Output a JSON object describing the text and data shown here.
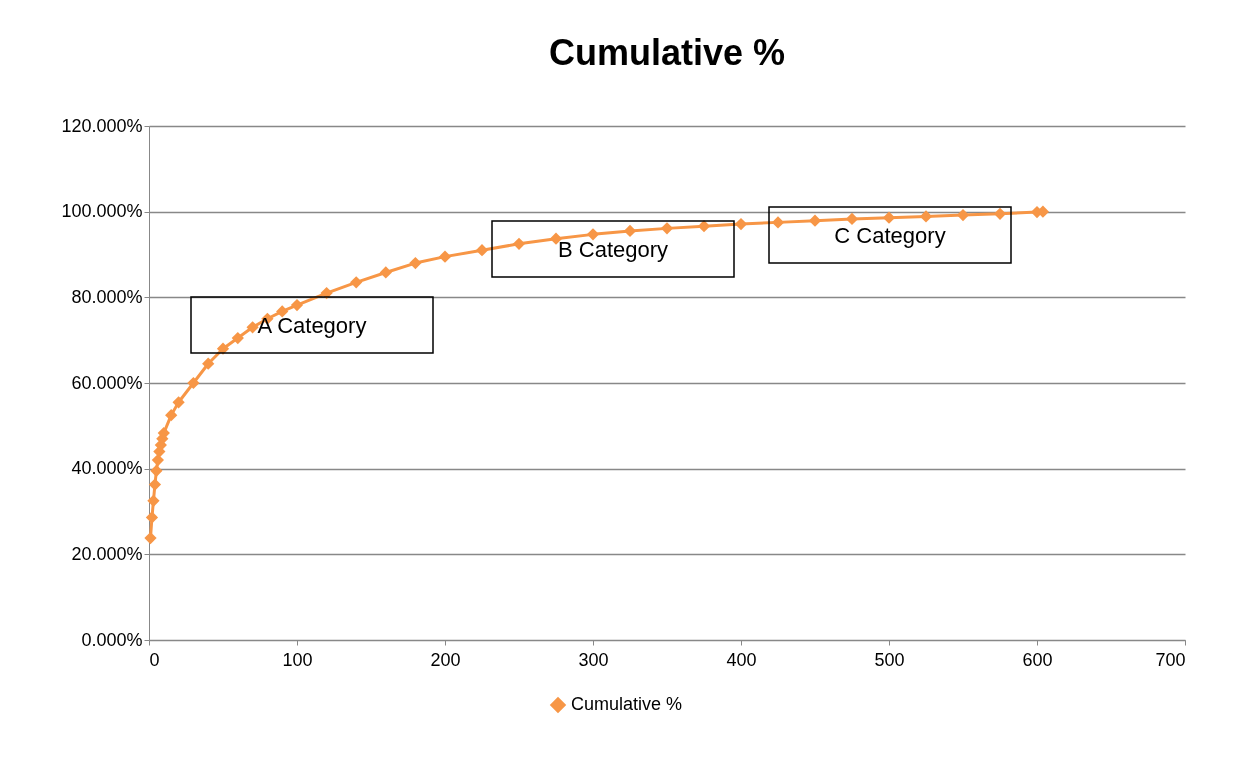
{
  "chart_data": {
    "type": "line",
    "title": "Cumulative %",
    "x": [
      1,
      2,
      3,
      4,
      5,
      6,
      7,
      8,
      9,
      10,
      15,
      20,
      30,
      40,
      50,
      60,
      70,
      80,
      90,
      100,
      120,
      140,
      160,
      180,
      200,
      225,
      250,
      275,
      300,
      325,
      350,
      375,
      400,
      425,
      450,
      475,
      500,
      525,
      550,
      575,
      600,
      604
    ],
    "series": [
      {
        "name": "Cumulative %",
        "color": "#f79646",
        "values": [
          23.8,
          28.6,
          32.5,
          36.3,
          39.5,
          42,
          44,
          45.5,
          47,
          48.3,
          52.5,
          55.5,
          60,
          64.5,
          68,
          70.5,
          73,
          75,
          76.7,
          78.2,
          81,
          83.5,
          85.8,
          88,
          89.5,
          91,
          92.5,
          93.7,
          94.7,
          95.5,
          96.1,
          96.6,
          97.1,
          97.5,
          97.9,
          98.3,
          98.6,
          98.9,
          99.2,
          99.5,
          99.9,
          100
        ]
      }
    ],
    "xlim": [
      0,
      700
    ],
    "xticks": [
      0,
      100,
      200,
      300,
      400,
      500,
      600,
      700
    ],
    "ylim": [
      0,
      120
    ],
    "yticks": [
      {
        "value": 0,
        "label": "0.000%"
      },
      {
        "value": 20,
        "label": "20.000%"
      },
      {
        "value": 40,
        "label": "40.000%"
      },
      {
        "value": 60,
        "label": "60.000%"
      },
      {
        "value": 80,
        "label": "80.000%"
      },
      {
        "value": 100,
        "label": "100.000%"
      },
      {
        "value": 120,
        "label": "120.000%"
      }
    ],
    "annotations": [
      "A Category",
      "B Category",
      "C Category"
    ],
    "grid": "y",
    "legend": "bottom",
    "marker": "diamond",
    "line_style": "solid"
  }
}
